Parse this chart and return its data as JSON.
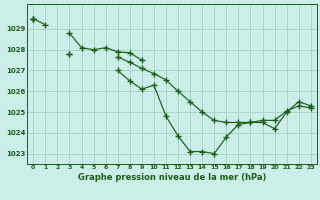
{
  "title": "Graphe pression niveau de la mer (hPa)",
  "background_color": "#cceee8",
  "grid_color": "#aad4cc",
  "line_color": "#1a5e1a",
  "x_min": 0,
  "x_max": 23,
  "y_min": 1022.5,
  "y_max": 1030.2,
  "yticks": [
    1023,
    1024,
    1025,
    1026,
    1027,
    1028,
    1029
  ],
  "xtick_labels": [
    "0",
    "1",
    "2",
    "3",
    "4",
    "5",
    "6",
    "7",
    "8",
    "9",
    "10",
    "11",
    "12",
    "13",
    "14",
    "15",
    "16",
    "17",
    "18",
    "19",
    "20",
    "21",
    "22",
    "23"
  ],
  "series": [
    [
      1029.5,
      1029.2,
      null,
      1028.8,
      1028.1,
      1028.0,
      1028.1,
      1027.9,
      1027.85,
      1027.5,
      null,
      null,
      null,
      null,
      null,
      null,
      null,
      null,
      null,
      null,
      null,
      null,
      null,
      null
    ],
    [
      1029.5,
      null,
      null,
      1027.8,
      null,
      null,
      null,
      1027.65,
      1027.4,
      1027.1,
      1026.85,
      1026.55,
      1026.0,
      1025.5,
      1025.0,
      1024.6,
      1024.5,
      1024.5,
      1024.5,
      1024.6,
      1024.6,
      1025.05,
      1025.3,
      1025.2
    ],
    [
      1029.5,
      null,
      null,
      1027.8,
      null,
      null,
      null,
      1027.0,
      1026.5,
      1026.1,
      1026.3,
      1024.8,
      1023.85,
      1023.1,
      1023.1,
      1023.0,
      1023.8,
      1024.4,
      1024.5,
      1024.5,
      1024.2,
      1025.0,
      1025.5,
      1025.3
    ]
  ]
}
